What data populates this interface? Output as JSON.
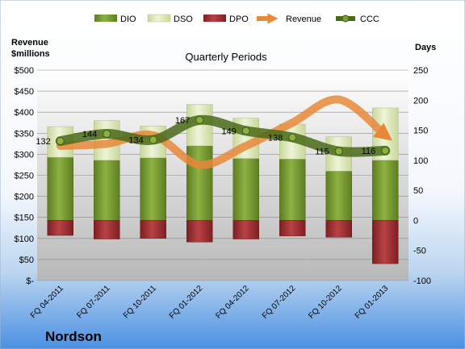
{
  "chart_data": {
    "type": "bar",
    "title": "Quarterly Periods",
    "company": "Nordson",
    "left_axis_label": "Revenue\n$millions",
    "right_axis_label": "Days",
    "categories": [
      "FQ 04-2011",
      "FQ 07-2011",
      "FQ 10-2011",
      "FQ 01-2012",
      "FQ 04-2012",
      "FQ 07-2012",
      "FQ 10-2012",
      "FQ 01-2013"
    ],
    "left_axis": {
      "min": 0,
      "max": 500,
      "step": 50,
      "tick_labels": [
        "$-",
        "$50",
        "$100",
        "$150",
        "$200",
        "$250",
        "$300",
        "$350",
        "$400",
        "$450",
        "$500"
      ]
    },
    "right_axis": {
      "min": -100,
      "max": 250,
      "step": 50,
      "tick_labels": [
        "-100",
        "-50",
        "0",
        "50",
        "100",
        "150",
        "200",
        "250"
      ]
    },
    "series": [
      {
        "name": "DIO",
        "axis": "right",
        "values": [
          105,
          100,
          104,
          124,
          103,
          102,
          82,
          100
        ]
      },
      {
        "name": "DSO",
        "axis": "right",
        "values": [
          51,
          66,
          53,
          69,
          67,
          58,
          57,
          87
        ]
      },
      {
        "name": "DPO",
        "axis": "right",
        "values": [
          -25,
          -31,
          -30,
          -36,
          -31,
          -26,
          -28,
          -72
        ]
      },
      {
        "name": "Revenue",
        "axis": "left",
        "values": [
          320,
          325,
          345,
          275,
          320,
          375,
          430,
          345
        ]
      },
      {
        "name": "CCC",
        "axis": "right",
        "values": [
          132,
          144,
          134,
          167,
          149,
          138,
          115,
          116
        ]
      }
    ],
    "ccc_labels": [
      "132",
      "144",
      "134",
      "167",
      "149",
      "138",
      "115",
      "116"
    ],
    "legend": {
      "position": "top",
      "entries": [
        "DIO",
        "DSO",
        "DPO",
        "Revenue",
        "CCC"
      ]
    },
    "grid": true,
    "colors": {
      "DIO": "#7a9a30",
      "DSO": "#d9e6b0",
      "DPO": "#a02f32",
      "Revenue": "#e8883a",
      "CCC": "#4a6a18"
    }
  }
}
